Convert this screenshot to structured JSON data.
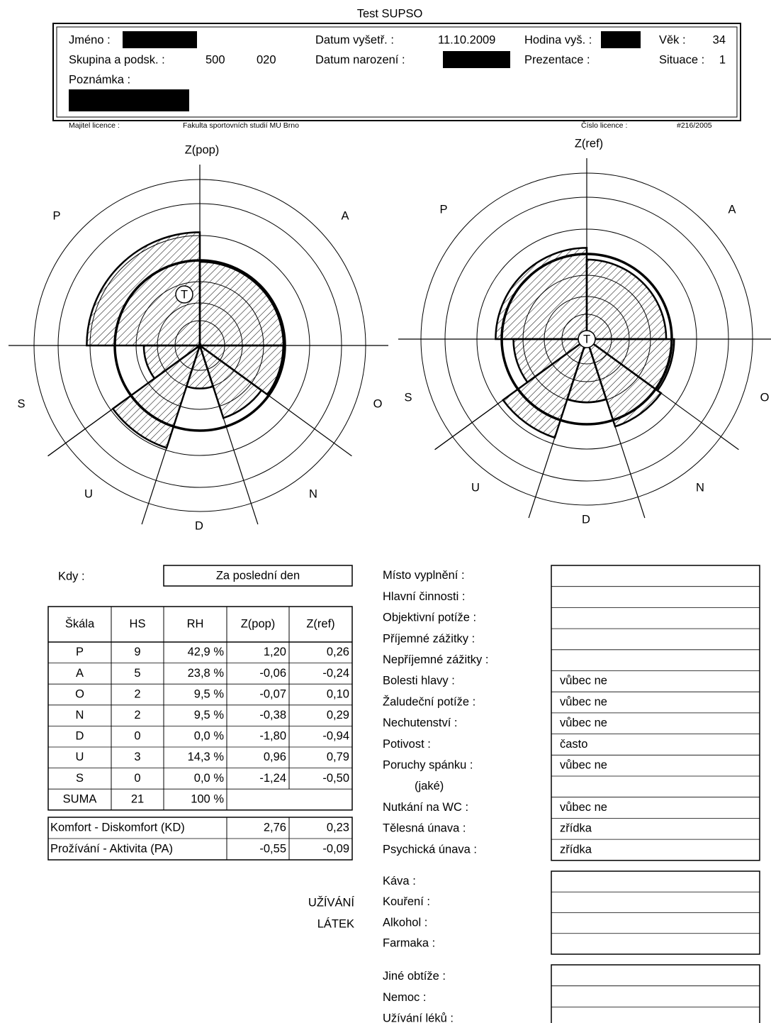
{
  "title": "Test SUPSO",
  "header": {
    "name_label": "Jméno :",
    "group_label": "Skupina a podsk. :",
    "group": "500",
    "subgroup": "020",
    "note_label": "Poznámka :",
    "exam_date_label": "Datum vyšetř. :",
    "exam_date": "11.10.2009",
    "exam_hour_label": "Hodina vyš. :",
    "age_label": "Věk :",
    "age": "34",
    "birth_label": "Datum narození :",
    "presentation_label": "Prezentace :",
    "situation_label": "Situace :",
    "situation": "1"
  },
  "license": {
    "owner_label": "Majitel licence :",
    "owner": "Fakulta sportovních studií MU Brno",
    "number_label": "Číslo licence :",
    "number": "#216/2005"
  },
  "diagrams": [
    {
      "axis_label": "Z(pop)",
      "scales": [
        "P",
        "A",
        "O",
        "N",
        "D",
        "U",
        "S"
      ],
      "marker": "T"
    },
    {
      "axis_label": "Z(ref)",
      "scales": [
        "P",
        "A",
        "O",
        "N",
        "D",
        "U",
        "S"
      ],
      "marker": "T"
    }
  ],
  "when": {
    "label": "Kdy :",
    "value": "Za poslední den"
  },
  "table": {
    "header": [
      "Škála",
      "HS",
      "RH",
      "Z(pop)",
      "Z(ref)"
    ],
    "rows": [
      [
        "P",
        "9",
        "42,9 %",
        "1,20",
        "0,26"
      ],
      [
        "A",
        "5",
        "23,8 %",
        "-0,06",
        "-0,24"
      ],
      [
        "O",
        "2",
        "9,5 %",
        "-0,07",
        "0,10"
      ],
      [
        "N",
        "2",
        "9,5 %",
        "-0,38",
        "0,29"
      ],
      [
        "D",
        "0",
        "0,0 %",
        "-1,80",
        "-0,94"
      ],
      [
        "U",
        "3",
        "14,3 %",
        "0,96",
        "0,79"
      ],
      [
        "S",
        "0",
        "0,0 %",
        "-1,24",
        "-0,50"
      ],
      [
        "SUMA",
        "21",
        "100 %"
      ]
    ]
  },
  "indices": {
    "rows": [
      [
        "Komfort - Diskomfort (KD)",
        "2,76",
        "0,23"
      ],
      [
        "Prožívání - Aktivita (PA)",
        "-0,55",
        "-0,09"
      ]
    ]
  },
  "questionnaire": {
    "rows": [
      {
        "label": "Místo vyplnění :"
      },
      {
        "label": "Hlavní činnosti :"
      },
      {
        "label": "Objektivní potíže :"
      },
      {
        "label": "Příjemné zážitky :"
      },
      {
        "label": "Nepříjemné zážitky :"
      },
      {
        "label": "Bolesti hlavy :",
        "answer": "vůbec ne"
      },
      {
        "label": "Žaludeční potíže :",
        "answer": "vůbec ne"
      },
      {
        "label": "Nechutenství :",
        "answer": "vůbec ne"
      },
      {
        "label": "Potivost :",
        "answer": "často"
      },
      {
        "label": "Poruchy spánku :",
        "answer": "vůbec ne"
      },
      {
        "label": "(jaké)"
      },
      {
        "label": "Nutkání na WC :",
        "answer": "vůbec ne"
      },
      {
        "label": "Tělesná únava :",
        "answer": "zřídka"
      },
      {
        "label": "Psychická únava :",
        "answer": "zřídka"
      }
    ]
  },
  "substances": {
    "heading": [
      "UŽÍVÁNÍ",
      "LÁTEK"
    ],
    "rows": [
      "Káva :",
      "Kouření :",
      "Alkohol :",
      "Farmaka :"
    ]
  },
  "other": {
    "rows": [
      "Jiné obtíže :",
      "Nemoc :",
      "Užívání léků :"
    ]
  }
}
